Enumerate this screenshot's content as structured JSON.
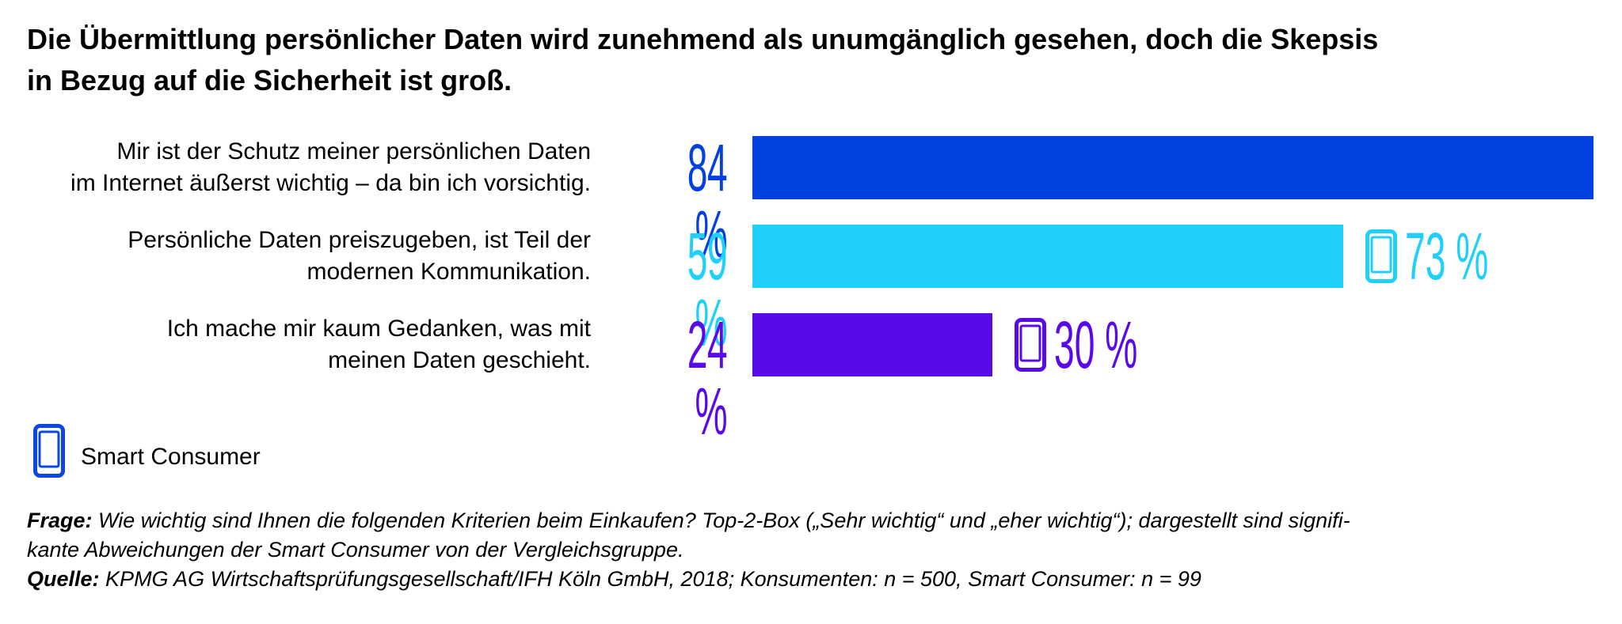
{
  "title_line1": "Die Übermittlung persönlicher Daten wird zunehmend als unumgänglich gesehen, doch die Skepsis",
  "title_line2": "in Bezug auf die Sicherheit ist groß.",
  "chart_data": {
    "type": "bar",
    "orientation": "horizontal",
    "unit": "%",
    "xlim": [
      0,
      84
    ],
    "categories": [
      [
        "Mir ist der Schutz meiner persönlichen Daten",
        "im Internet äußerst wichtig – da bin ich vorsichtig."
      ],
      [
        "Persönliche Daten preiszugeben, ist Teil der",
        "modernen Kommunikation."
      ],
      [
        "Ich mache mir kaum Gedanken, was mit",
        "meinen Daten geschieht."
      ]
    ],
    "series": [
      {
        "values": [
          84,
          59,
          24
        ],
        "labels": [
          "84 %",
          "59 %",
          "24 %"
        ]
      },
      {
        "name": "Smart Consumer",
        "values": [
          null,
          73,
          30
        ],
        "labels": [
          "",
          "73 %",
          "30 %"
        ]
      }
    ],
    "colors": [
      "#0340e0",
      "#1ed0fb",
      "#5a0ae8"
    ],
    "legend": {
      "label": "Smart Consumer",
      "icon": "smartphone-icon",
      "color": "#0b47e0",
      "position": "bottom-left"
    }
  },
  "footnote": {
    "frage_label": "Frage:",
    "frage_line1": "Wie wichtig sind Ihnen die folgenden Kriterien beim Einkaufen? Top-2-Box („Sehr wichtig“ und „eher wichtig“); dargestellt sind signifi-",
    "frage_line2": "kante Abweichungen der Smart Consumer von der Vergleichsgruppe.",
    "quelle_label": "Quelle:",
    "quelle_text": "KPMG AG Wirtschaftsprüfungsgesellschaft/IFH Köln GmbH, 2018; Konsumenten: n = 500, Smart Consumer: n = 99"
  }
}
